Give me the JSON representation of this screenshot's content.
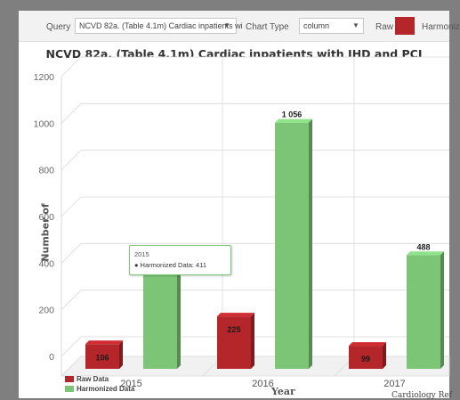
{
  "toolbar": {
    "query_label": "Query",
    "query_value": "NCVD 82a. (Table 4.1m) Cardiac inpatients wi",
    "chart_type_label": "Chart Type",
    "chart_type_value": "column",
    "raw_label": "Raw",
    "raw_color": "#b5262b",
    "harmonized_label": "Harmoniz"
  },
  "chart_data": {
    "type": "bar",
    "title": "NCVD 82a. (Table 4.1m) Cardiac inpatients with IHD and PCI",
    "xlabel": "Year",
    "ylabel": "Number of",
    "categories": [
      "2015",
      "2016",
      "2017"
    ],
    "series": [
      {
        "name": "Raw Data",
        "color": "#b5262b",
        "values": [
          106,
          225,
          99
        ],
        "labels": [
          "106",
          "225",
          "99"
        ]
      },
      {
        "name": "Harmonized Data",
        "color": "#7cc576",
        "values": [
          411,
          1056,
          488
        ],
        "labels": [
          "",
          "1 056",
          "488"
        ]
      }
    ],
    "yticks": [
      "0",
      "200",
      "400",
      "600",
      "800",
      "1000",
      "1200"
    ],
    "ylim": [
      0,
      1200
    ],
    "grid": true,
    "legend_position": "bottom-left"
  },
  "tooltip": {
    "year": "2015",
    "text": "Harmonized Data: 411"
  },
  "credit": "Cardiology Ref"
}
